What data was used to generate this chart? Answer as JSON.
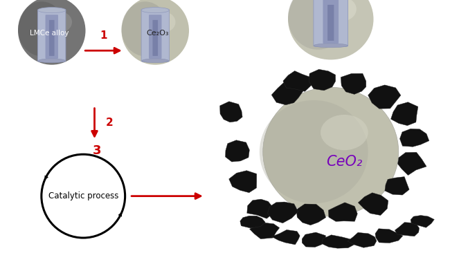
{
  "bg_color": "#ffffff",
  "arrow_color": "#cc0000",
  "lmce_label": "LMCe alloy",
  "ce2o3_label": "Ce₂O₃",
  "ceo2_label": "CeO₂",
  "catalytic_label": "Catalytic process",
  "step1": "1",
  "step2": "2",
  "step3": "3",
  "lmce_color_dark": "#6b6b6b",
  "lmce_color_mid": "#888888",
  "lmce_color_light": "#aaaaaa",
  "ce2o3_color_dark": "#a8a89a",
  "ce2o3_color_mid": "#c2c2b0",
  "ce2o3_color_light": "#d8d8c8",
  "ceo2_color_dark": "#a8a89a",
  "ceo2_color_mid": "#c0c0ae",
  "ceo2_color_light": "#d5d5c5",
  "tube_color_outer": "#b0b8d0",
  "tube_color_inner": "#8890b8",
  "tube_color_dark": "#7880a8",
  "purple_color": "#7700bb",
  "chunk_color": "#111111"
}
